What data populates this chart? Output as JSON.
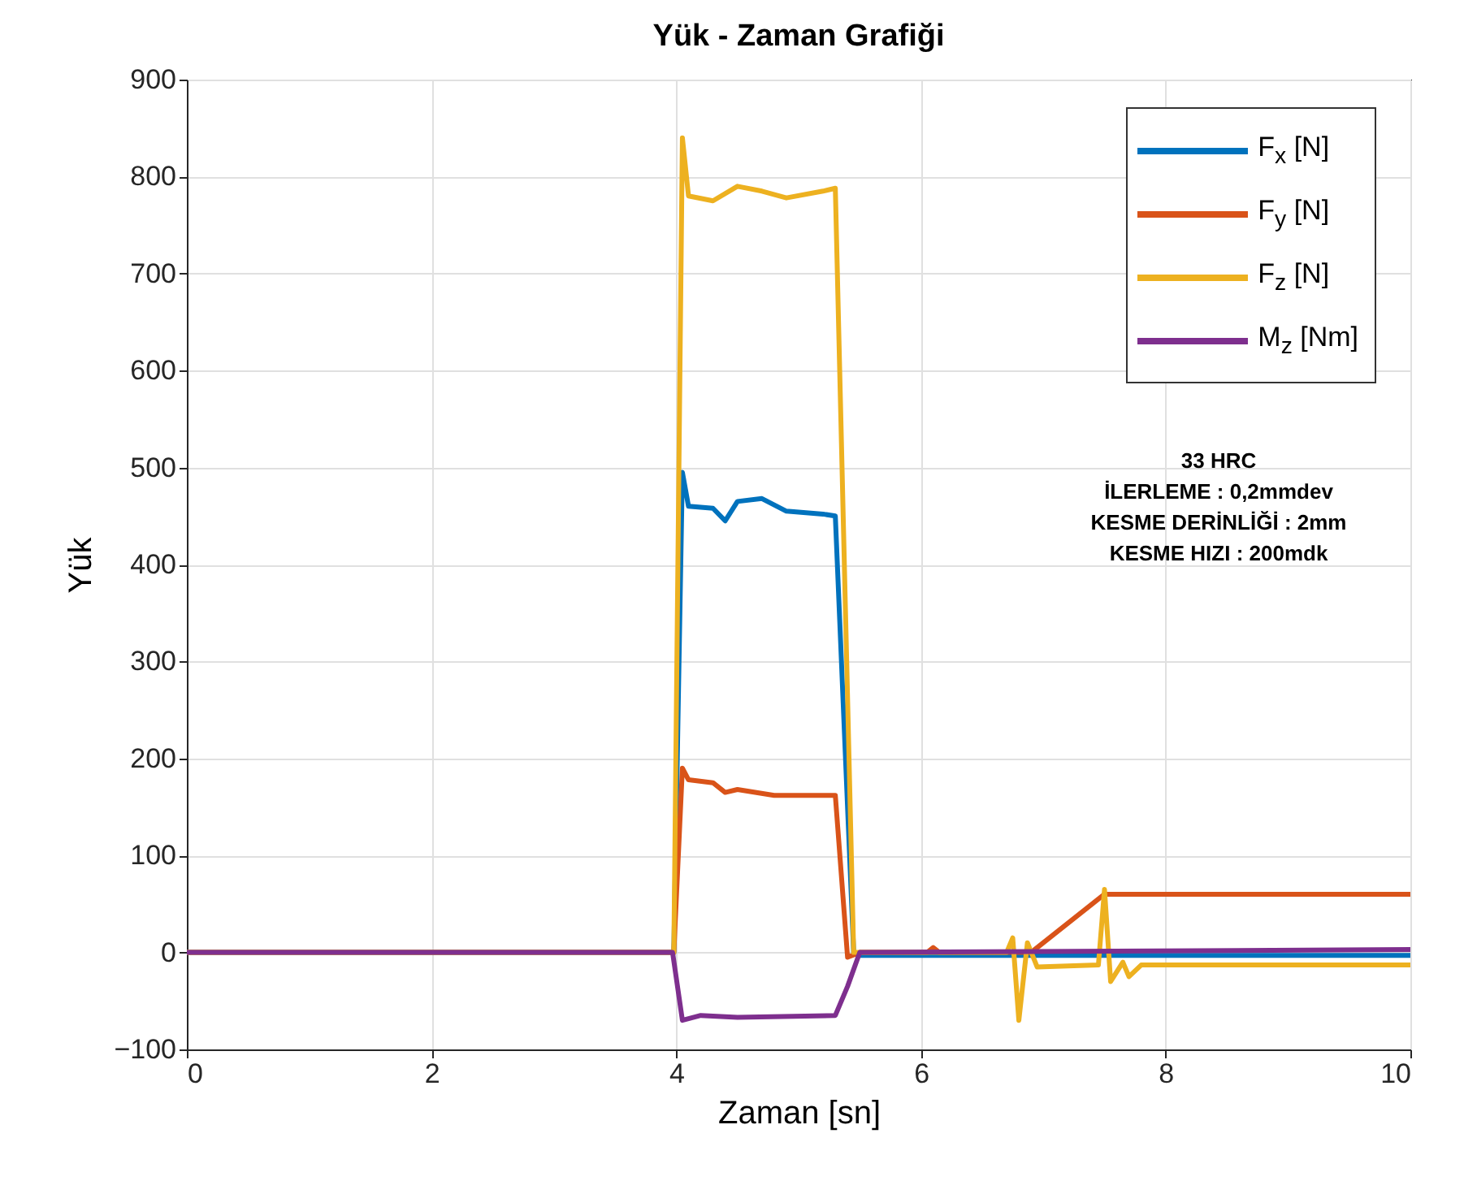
{
  "chart_data": {
    "type": "line",
    "title": "Yük - Zaman Grafiği",
    "xlabel": "Zaman [sn]",
    "ylabel": "Yük",
    "xlim": [
      0,
      10
    ],
    "xticks": [
      0,
      2,
      4,
      6,
      8,
      10
    ],
    "ylim": [
      -100,
      900
    ],
    "yticks": [
      -100,
      0,
      100,
      200,
      300,
      400,
      500,
      600,
      700,
      800,
      900
    ],
    "grid": true,
    "legend": "top right",
    "line_style": "solid",
    "marker": "none",
    "annotations": [
      "33 HRC",
      "İLERLEME : 0,2mmdev",
      "KESME DERİNLİĞİ : 2mm",
      "KESME HIZI : 200mdk"
    ],
    "series": [
      {
        "name": "F$_{x}$ [N]",
        "color": "#0072bd",
        "x": [
          0,
          3.98,
          4.05,
          4.1,
          4.3,
          4.4,
          4.5,
          4.7,
          4.9,
          5.2,
          5.3,
          5.45,
          5.5,
          7,
          10
        ],
        "values": [
          0,
          0,
          495,
          460,
          458,
          445,
          465,
          468,
          455,
          452,
          450,
          0,
          -3,
          -3,
          -3
        ]
      },
      {
        "name": "F$_{y}$ [N]",
        "color": "#d95319",
        "x": [
          0,
          3.98,
          4.05,
          4.1,
          4.3,
          4.4,
          4.5,
          4.8,
          5.3,
          5.4,
          5.5,
          6.05,
          6.1,
          6.15,
          6.9,
          7.5,
          10
        ],
        "values": [
          0,
          0,
          190,
          178,
          175,
          165,
          168,
          162,
          162,
          -5,
          0,
          0,
          5,
          0,
          0,
          60,
          60
        ]
      },
      {
        "name": "F$_{z}$ [N]",
        "color": "#edb120",
        "x": [
          0,
          3.98,
          4.05,
          4.1,
          4.3,
          4.5,
          4.7,
          4.9,
          5.2,
          5.3,
          5.45,
          6.7,
          6.75,
          6.8,
          6.87,
          6.95,
          7.45,
          7.5,
          7.55,
          7.65,
          7.7,
          7.8,
          10
        ],
        "values": [
          0,
          0,
          840,
          780,
          775,
          790,
          785,
          778,
          785,
          788,
          0,
          0,
          15,
          -70,
          10,
          -15,
          -13,
          65,
          -30,
          -10,
          -25,
          -13,
          -13
        ]
      },
      {
        "name": "M$_{z}$ [Nm]",
        "color": "#7e2f8e",
        "x": [
          0,
          3.97,
          4.05,
          4.2,
          4.5,
          5.3,
          5.4,
          5.5,
          10
        ],
        "values": [
          0,
          0,
          -70,
          -65,
          -67,
          -65,
          -35,
          0,
          3
        ]
      }
    ]
  }
}
